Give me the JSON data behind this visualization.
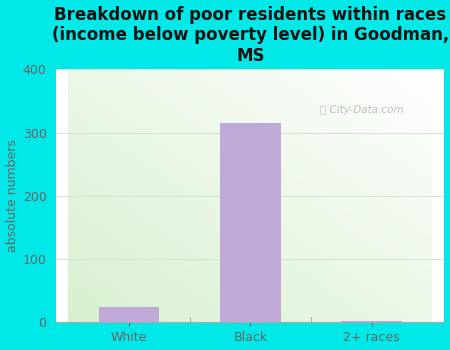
{
  "title": "Breakdown of poor residents within races\n(income below poverty level) in Goodman,\nMS",
  "categories": [
    "White",
    "Black",
    "2+ races"
  ],
  "values": [
    25,
    315,
    3
  ],
  "bar_color": "#c0a8d8",
  "ylabel": "absolute numbers",
  "ylim": [
    0,
    400
  ],
  "yticks": [
    0,
    100,
    200,
    300,
    400
  ],
  "bg_outer": "#00e8e8",
  "bg_plot_gradient_top": "#ffffff",
  "bg_plot_gradient_bottom": "#d8f0d0",
  "grid_color": "#d0e8d0",
  "title_fontsize": 12,
  "axis_label_fontsize": 9,
  "tick_fontsize": 9,
  "watermark": "City-Data.com",
  "tick_color": "#666666",
  "title_color": "#111111"
}
